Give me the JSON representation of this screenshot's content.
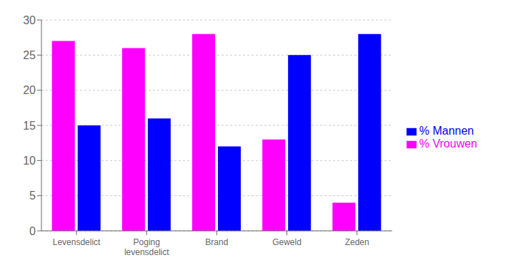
{
  "chart_data": {
    "type": "bar",
    "categories": [
      "Levensdelict",
      "Poging\nlevensdelict",
      "Brand",
      "Geweld",
      "Zeden"
    ],
    "series": [
      {
        "name": "% Vrouwen",
        "color": "#FF00FF",
        "values": [
          27,
          26,
          28,
          13,
          4
        ]
      },
      {
        "name": "% Mannen",
        "color": "#0000FF",
        "values": [
          15,
          16,
          12,
          25,
          28
        ]
      }
    ],
    "ylim": [
      0,
      30
    ],
    "yticks": [
      0,
      5,
      10,
      15,
      20,
      25,
      30
    ],
    "grid": true,
    "legend": "right"
  }
}
